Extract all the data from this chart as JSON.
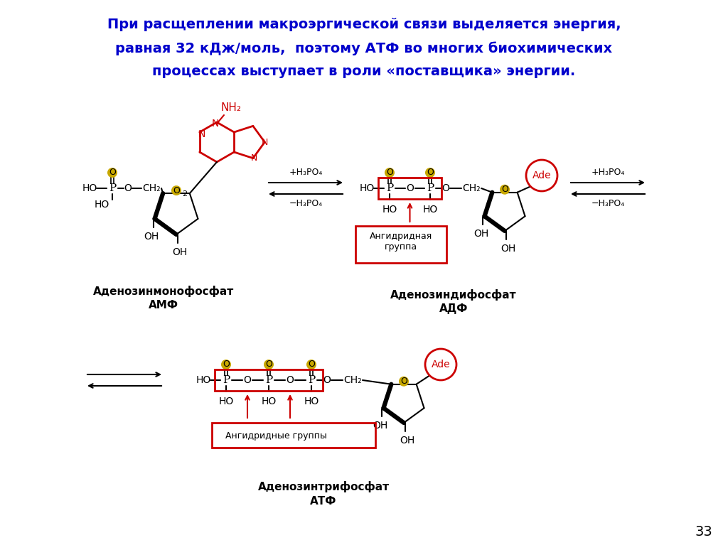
{
  "title_line1": "При расщеплении макроэргической связи выделяется энергия,",
  "title_line2": "равная 32 кДж/моль,  поэтому АТФ во многих биохимических",
  "title_line3": "процессах выступает в роли «поставщика» энергии.",
  "title_color": "#0000cc",
  "bg_color": "#ffffff",
  "page_number": "33",
  "amf_label1": "Аденозинмонофосфат",
  "amf_label2": "АМФ",
  "adf_label1": "Аденозиндифосфат",
  "adf_label2": "АДФ",
  "atf_label1": "Аденозинтрифосфат",
  "atf_label2": "АТФ",
  "angidr_group": "Ангидридная\nгруппа",
  "angidr_groups": "Ангидридные группы",
  "red_color": "#cc0000",
  "black_color": "#000000",
  "gold_color": "#c8a800"
}
